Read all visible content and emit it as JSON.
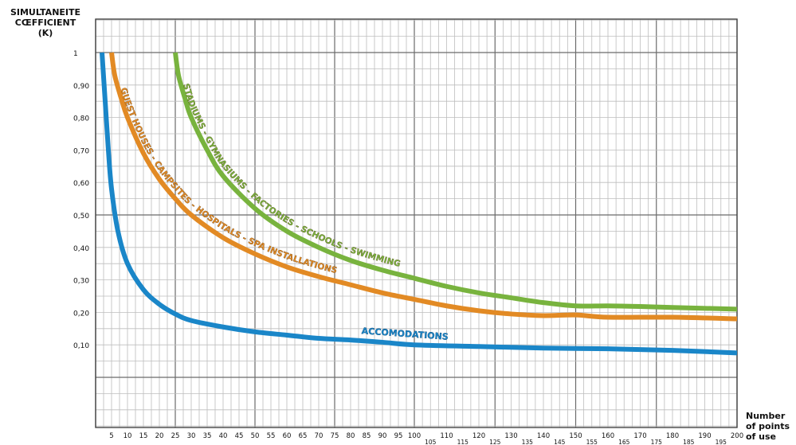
{
  "chart_data": {
    "type": "line",
    "title": "",
    "ylabel_lines": [
      "SIMULTANEITE",
      "CŒFFICIENT",
      "(K)"
    ],
    "xlabel_lines": [
      "Number",
      "of points",
      "of use"
    ],
    "xlim": [
      0,
      200
    ],
    "ylim": [
      0,
      1
    ],
    "grid": true,
    "y_ticks": [
      {
        "value": 1.0,
        "label": "1"
      },
      {
        "value": 0.9,
        "label": "0,90"
      },
      {
        "value": 0.8,
        "label": "0,80"
      },
      {
        "value": 0.7,
        "label": "0,70"
      },
      {
        "value": 0.6,
        "label": "0,60"
      },
      {
        "value": 0.5,
        "label": "0,50"
      },
      {
        "value": 0.4,
        "label": "0,40"
      },
      {
        "value": 0.3,
        "label": "0,30"
      },
      {
        "value": 0.2,
        "label": "0,20"
      },
      {
        "value": 0.1,
        "label": "0,10"
      }
    ],
    "x_ticks_upper": [
      5,
      10,
      15,
      20,
      25,
      30,
      35,
      40,
      45,
      50,
      55,
      60,
      65,
      70,
      75,
      80,
      85,
      90,
      95,
      100,
      110,
      120,
      130,
      140,
      150,
      160,
      170,
      180,
      190,
      200
    ],
    "x_ticks_lower": [
      105,
      115,
      125,
      135,
      145,
      155,
      165,
      175,
      185,
      195
    ],
    "series": [
      {
        "name": "ACCOMODATIONS",
        "color": "#1a86c8",
        "x": [
          2,
          3,
          4,
          5,
          7,
          10,
          15,
          20,
          25,
          30,
          40,
          50,
          60,
          70,
          80,
          90,
          100,
          120,
          140,
          160,
          180,
          200
        ],
        "y": [
          1.0,
          0.85,
          0.7,
          0.58,
          0.45,
          0.35,
          0.27,
          0.225,
          0.195,
          0.175,
          0.155,
          0.14,
          0.13,
          0.12,
          0.115,
          0.108,
          0.1,
          0.095,
          0.09,
          0.088,
          0.083,
          0.075
        ]
      },
      {
        "name": "GUEST HOUSES - CAMPSITES - HOSPITALS - SPA INSTALLATIONS",
        "color": "#e28a24",
        "x": [
          5,
          6,
          8,
          10,
          15,
          20,
          25,
          30,
          40,
          50,
          60,
          70,
          80,
          90,
          100,
          110,
          120,
          130,
          140,
          150,
          160,
          180,
          200
        ],
        "y": [
          1.0,
          0.93,
          0.86,
          0.8,
          0.69,
          0.61,
          0.55,
          0.5,
          0.43,
          0.38,
          0.34,
          0.31,
          0.285,
          0.26,
          0.24,
          0.22,
          0.205,
          0.195,
          0.19,
          0.192,
          0.185,
          0.185,
          0.18
        ]
      },
      {
        "name": "STADIUMS - GYMNASIUMS - FACTORIES - SCHOOLS - SWIMMING",
        "color": "#78b33e",
        "x": [
          25,
          26,
          28,
          30,
          35,
          40,
          50,
          60,
          70,
          80,
          90,
          100,
          110,
          120,
          130,
          140,
          150,
          160,
          170,
          180,
          200
        ],
        "y": [
          1.0,
          0.93,
          0.86,
          0.8,
          0.7,
          0.62,
          0.52,
          0.45,
          0.4,
          0.36,
          0.33,
          0.305,
          0.28,
          0.26,
          0.245,
          0.23,
          0.22,
          0.22,
          0.218,
          0.215,
          0.21
        ]
      }
    ]
  }
}
